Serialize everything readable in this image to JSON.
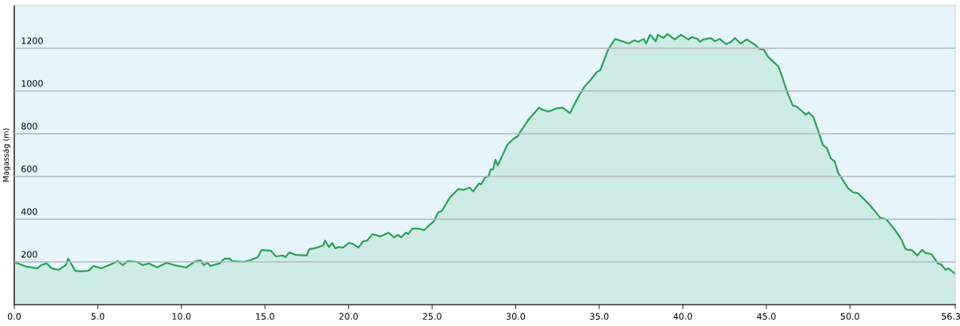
{
  "chart_data": {
    "type": "area",
    "ylabel": "Magasság (m)",
    "series": [
      {
        "color": "#2aa356",
        "x": [
          0,
          0.71,
          1.38,
          1.61,
          1.94,
          2.23,
          2.66,
          3.08,
          3.23,
          3.65,
          3.98,
          4.46,
          4.74,
          5.22,
          5.79,
          6.17,
          6.5,
          6.78,
          7.35,
          7.68,
          8.06,
          8.54,
          9.11,
          9.58,
          10.29,
          10.86,
          11.15,
          11.34,
          11.57,
          11.72,
          12.28,
          12.57,
          12.9,
          13.04,
          13.71,
          14.09,
          14.56,
          14.8,
          15.37,
          15.65,
          16.08,
          16.22,
          16.46,
          16.84,
          17.5,
          17.64,
          18.12,
          18.5,
          18.59,
          18.83,
          19.02,
          19.21,
          19.4,
          19.68,
          20.02,
          20.25,
          20.59,
          20.87,
          21.11,
          21.44,
          21.91,
          22.39,
          22.72,
          22.96,
          23.15,
          23.43,
          23.57,
          23.81,
          24.19,
          24.52,
          24.76,
          25.09,
          25.38,
          25.57,
          25.85,
          26.09,
          26.56,
          26.89,
          27.23,
          27.46,
          27.8,
          27.94,
          28.18,
          28.37,
          28.51,
          28.65,
          28.79,
          28.93,
          29.5,
          29.84,
          30.12,
          30.26,
          30.78,
          31.4,
          31.64,
          31.97,
          32.44,
          32.82,
          33.25,
          33.68,
          34.1,
          34.48,
          34.86,
          35.05,
          35.53,
          35.95,
          36.76,
          37.09,
          37.33,
          37.66,
          37.8,
          38.04,
          38.37,
          38.51,
          38.85,
          39.08,
          39.51,
          39.89,
          40.32,
          40.55,
          40.89,
          41.03,
          41.22,
          41.69,
          41.93,
          42.21,
          42.59,
          42.88,
          43.12,
          43.45,
          43.83,
          44.35,
          44.59,
          44.82,
          45.11,
          45.72,
          45.96,
          46.25,
          46.58,
          46.82,
          47.38,
          47.53,
          47.81,
          48.14,
          48.38,
          48.62,
          48.85,
          49.09,
          49.28,
          49.9,
          50.18,
          50.47,
          51.18,
          51.46,
          51.8,
          52.17,
          52.37,
          52.75,
          53.08,
          53.31,
          53.46,
          53.69,
          54.03,
          54.31,
          54.55,
          54.88,
          55.26,
          55.45,
          55.73,
          55.88,
          56.3
        ],
        "values": [
          200,
          178,
          170,
          185,
          193,
          170,
          163,
          185,
          215,
          159,
          156,
          159,
          181,
          170,
          189,
          204,
          185,
          204,
          200,
          185,
          193,
          174,
          196,
          185,
          174,
          204,
          207,
          185,
          196,
          181,
          193,
          215,
          215,
          204,
          200,
          207,
          222,
          256,
          252,
          226,
          230,
          222,
          244,
          233,
          230,
          259,
          267,
          278,
          300,
          270,
          289,
          263,
          270,
          267,
          289,
          285,
          267,
          296,
          300,
          330,
          319,
          337,
          315,
          326,
          315,
          337,
          330,
          356,
          356,
          348,
          367,
          389,
          433,
          437,
          474,
          504,
          541,
          537,
          548,
          530,
          567,
          563,
          596,
          600,
          633,
          633,
          678,
          652,
          748,
          774,
          789,
          807,
          867,
          922,
          911,
          904,
          919,
          922,
          896,
          963,
          1019,
          1052,
          1089,
          1096,
          1193,
          1244,
          1222,
          1237,
          1230,
          1244,
          1222,
          1263,
          1233,
          1263,
          1248,
          1267,
          1241,
          1263,
          1241,
          1252,
          1244,
          1230,
          1241,
          1248,
          1233,
          1244,
          1219,
          1230,
          1248,
          1222,
          1241,
          1215,
          1196,
          1196,
          1159,
          1115,
          1063,
          993,
          933,
          926,
          889,
          900,
          878,
          804,
          748,
          733,
          685,
          670,
          619,
          544,
          526,
          522,
          467,
          441,
          407,
          400,
          381,
          344,
          304,
          263,
          256,
          256,
          230,
          256,
          241,
          237,
          193,
          189,
          163,
          170,
          144
        ]
      }
    ],
    "xlim": [
      0,
      56.3
    ],
    "ylim": [
      0,
      1400
    ],
    "xticks": [
      {
        "value": 0,
        "label": "0.0"
      },
      {
        "value": 5,
        "label": "5.0"
      },
      {
        "value": 10,
        "label": "10.0"
      },
      {
        "value": 15,
        "label": "15.0"
      },
      {
        "value": 20,
        "label": "20.0"
      },
      {
        "value": 25,
        "label": "25.0"
      },
      {
        "value": 30,
        "label": "30.0"
      },
      {
        "value": 35,
        "label": "35.0"
      },
      {
        "value": 40,
        "label": "40.0"
      },
      {
        "value": 45,
        "label": "45.0"
      },
      {
        "value": 50,
        "label": "50.0"
      },
      56.3
    ],
    "yticks": [
      200,
      400,
      600,
      800,
      1000,
      1200
    ],
    "grid": "y",
    "legend": false,
    "marker": "none",
    "line_style": "solid"
  }
}
